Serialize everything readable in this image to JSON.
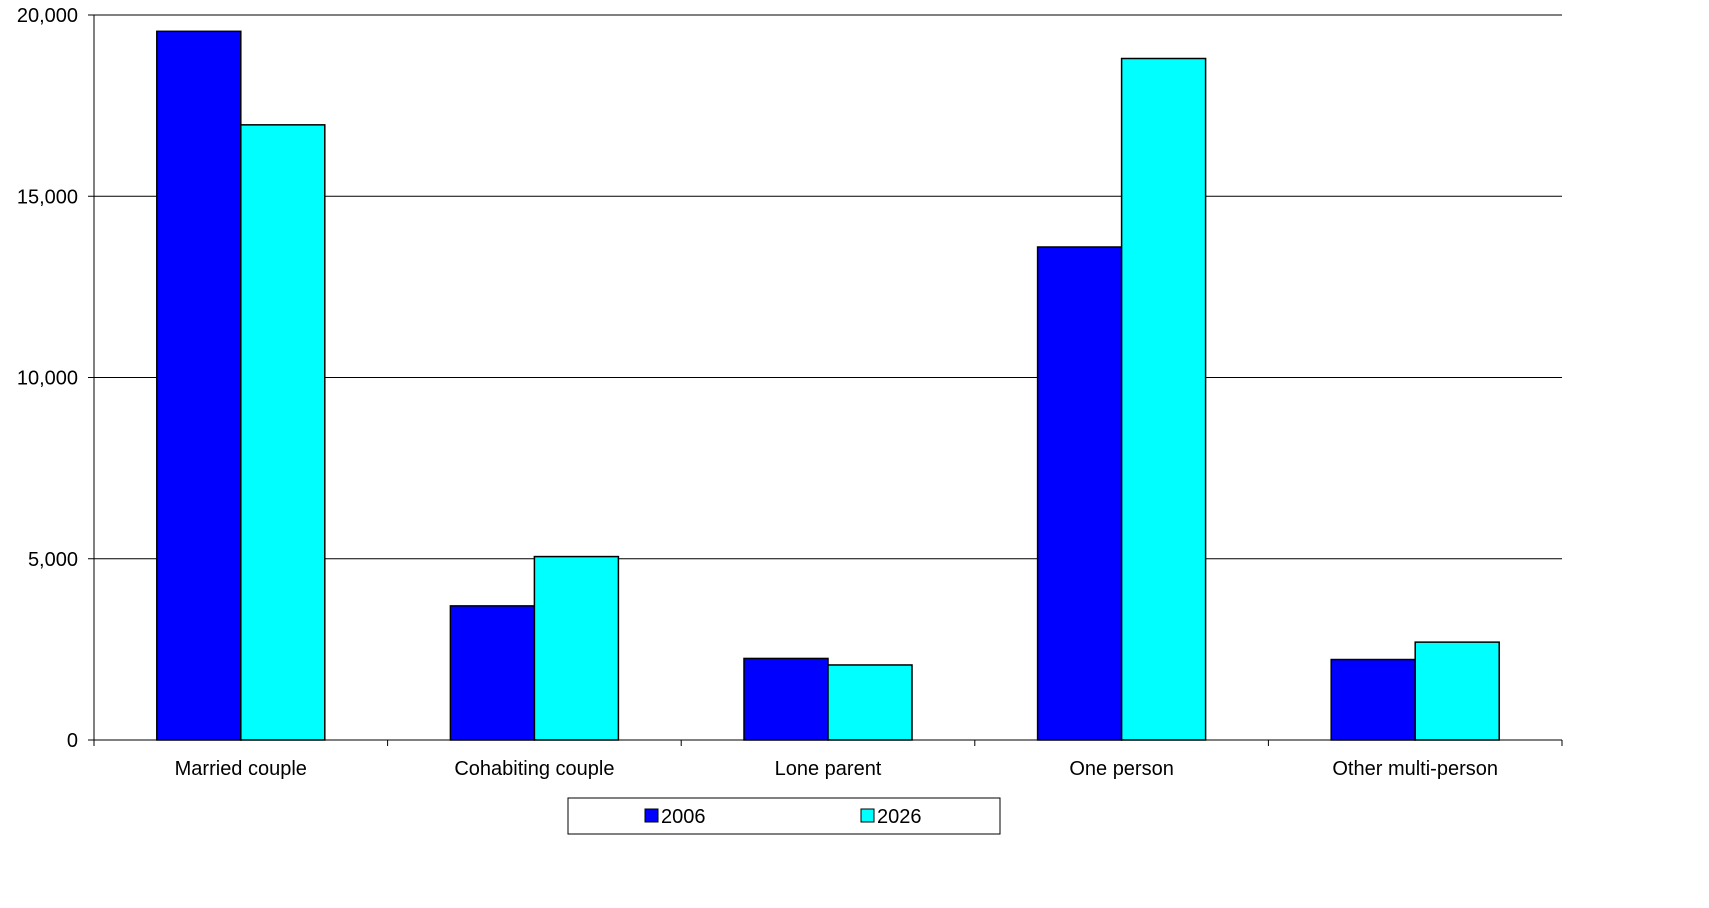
{
  "chart_data": {
    "type": "bar",
    "title": "",
    "xlabel": "",
    "ylabel": "",
    "ylim": [
      0,
      20000
    ],
    "yticks": [
      0,
      5000,
      10000,
      15000,
      20000
    ],
    "ytick_labels": [
      "0",
      "5,000",
      "10,000",
      "15,000",
      "20,000"
    ],
    "grid": true,
    "legend_position": "bottom",
    "categories": [
      "Married couple",
      "Cohabiting couple",
      "Lone parent",
      "One person",
      "Other multi-person"
    ],
    "series": [
      {
        "name": "2006",
        "color": "#0000FF",
        "values": [
          19550,
          3700,
          2250,
          13600,
          2220
        ]
      },
      {
        "name": "2026",
        "color": "#00FFFF",
        "values": [
          16970,
          5060,
          2070,
          18800,
          2700
        ]
      }
    ]
  }
}
